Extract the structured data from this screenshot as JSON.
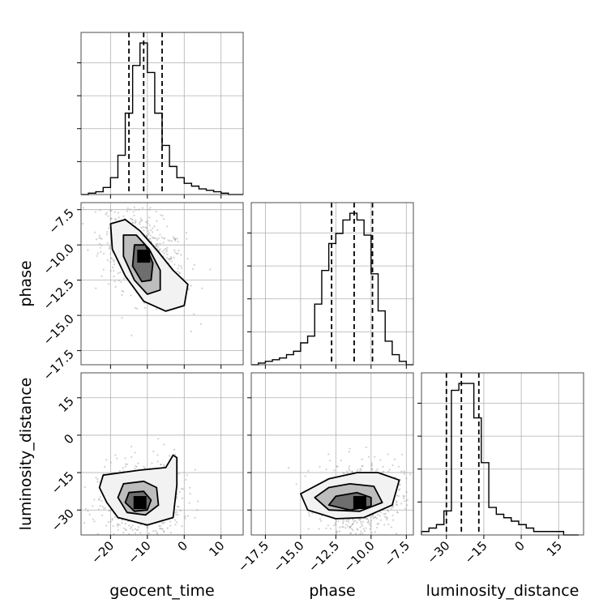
{
  "chart_data": {
    "type": "corner",
    "parameters": [
      "geocent_time",
      "phase",
      "luminosity_distance"
    ],
    "grid": true,
    "colors": {
      "line": "#000000",
      "grid": "#b0b0b0",
      "scatter": "#9a9a9a"
    },
    "ranges": {
      "geocent_time": [
        -28,
        16
      ],
      "phase": [
        -18.5,
        -7
      ],
      "luminosity_distance": [
        -40,
        25
      ]
    },
    "ticks": {
      "geocent_time": {
        "values": [
          -20,
          -10,
          0,
          10
        ],
        "labels": [
          "−20",
          "−10",
          "0",
          "10"
        ]
      },
      "phase": {
        "values": [
          -17.5,
          -15.0,
          -12.5,
          -10.0,
          -7.5
        ],
        "labels": [
          "−17.5",
          "−15.0",
          "−12.5",
          "−10.0",
          "−7.5"
        ]
      },
      "luminosity_distance": {
        "values": [
          -30,
          -15,
          0,
          15
        ],
        "labels": [
          "−30",
          "−15",
          "0",
          "15"
        ]
      }
    },
    "histograms": {
      "geocent_time": {
        "edges": [
          -28,
          -26,
          -24,
          -22,
          -20,
          -18,
          -16,
          -14,
          -12,
          -10,
          -8,
          -6,
          -4,
          -2,
          0,
          2,
          4,
          6,
          8,
          10,
          12,
          14,
          16
        ],
        "counts": [
          0,
          1,
          2,
          5,
          12,
          28,
          58,
          92,
          108,
          87,
          58,
          35,
          20,
          12,
          8,
          6,
          4,
          3,
          2,
          1,
          0,
          0
        ],
        "quantiles": [
          -15,
          -11,
          -6
        ]
      },
      "phase": {
        "edges": [
          -18.5,
          -18,
          -17.5,
          -17,
          -16.5,
          -16,
          -15.5,
          -15,
          -14.5,
          -14,
          -13.5,
          -13,
          -12.5,
          -12,
          -11.5,
          -11,
          -10.5,
          -10,
          -9.5,
          -9,
          -8.5,
          -8,
          -7.5,
          -7
        ],
        "counts": [
          0,
          1,
          2,
          3,
          4,
          6,
          8,
          13,
          17,
          36,
          56,
          72,
          78,
          86,
          90,
          86,
          77,
          54,
          32,
          14,
          6,
          2,
          0
        ],
        "quantiles": [
          -12.8,
          -11.2,
          -9.9
        ]
      },
      "luminosity_distance": {
        "edges": [
          -40,
          -37,
          -34,
          -31,
          -28,
          -25,
          -22,
          -19,
          -16,
          -13,
          -10,
          -7,
          -4,
          -1,
          2,
          5,
          8,
          11,
          14,
          17,
          20,
          23
        ],
        "counts": [
          1,
          2,
          3,
          7,
          42,
          44,
          44,
          34,
          21,
          8,
          6,
          5,
          4,
          3,
          2,
          1,
          1,
          1,
          1,
          0,
          0
        ],
        "quantiles": [
          -30,
          -24,
          -17
        ]
      }
    },
    "pairs": [
      {
        "x": "geocent_time",
        "y": "phase",
        "center": [
          -11,
          -10.8
        ],
        "contours": [
          [
            [
              -20,
              -8.5
            ],
            [
              -16,
              -8.2
            ],
            [
              -12,
              -9
            ],
            [
              -7,
              -10.5
            ],
            [
              -3,
              -11.8
            ],
            [
              1,
              -12.8
            ],
            [
              0,
              -14.3
            ],
            [
              -5,
              -14.7
            ],
            [
              -11,
              -14
            ],
            [
              -16,
              -12.2
            ],
            [
              -19.5,
              -10.3
            ]
          ],
          [
            [
              -16.5,
              -9.3
            ],
            [
              -13,
              -9.3
            ],
            [
              -9.5,
              -10.3
            ],
            [
              -6.5,
              -11.8
            ],
            [
              -6.5,
              -13.2
            ],
            [
              -10,
              -13.5
            ],
            [
              -13.5,
              -12.5
            ],
            [
              -16.5,
              -10.8
            ]
          ],
          [
            [
              -13.5,
              -10
            ],
            [
              -10.5,
              -10
            ],
            [
              -8.5,
              -11.3
            ],
            [
              -9,
              -12.5
            ],
            [
              -11.5,
              -12.6
            ],
            [
              -14,
              -11.5
            ]
          ]
        ]
      },
      {
        "x": "geocent_time",
        "y": "luminosity_distance",
        "center": [
          -12,
          -27
        ],
        "contours": [
          [
            [
              -22,
              -16
            ],
            [
              -12,
              -14
            ],
            [
              -5,
              -13
            ],
            [
              -3,
              -8
            ],
            [
              -2,
              -9
            ],
            [
              -2,
              -20
            ],
            [
              -3,
              -33
            ],
            [
              -10,
              -36
            ],
            [
              -18,
              -33
            ],
            [
              -21,
              -27
            ],
            [
              -23,
              -21
            ]
          ],
          [
            [
              -16.5,
              -19.5
            ],
            [
              -11,
              -18.5
            ],
            [
              -7.5,
              -21
            ],
            [
              -7,
              -28
            ],
            [
              -10.5,
              -32
            ],
            [
              -15.5,
              -31
            ],
            [
              -18,
              -25
            ]
          ],
          [
            [
              -15,
              -23
            ],
            [
              -11,
              -22.5
            ],
            [
              -9,
              -26
            ],
            [
              -10,
              -30
            ],
            [
              -13.5,
              -30.5
            ],
            [
              -16,
              -27
            ]
          ]
        ]
      },
      {
        "x": "phase",
        "y": "luminosity_distance",
        "center": [
          -10.8,
          -27
        ],
        "contours": [
          [
            [
              -13,
              -17.5
            ],
            [
              -11,
              -15
            ],
            [
              -9.5,
              -15
            ],
            [
              -8,
              -18
            ],
            [
              -8.5,
              -28
            ],
            [
              -10.5,
              -33
            ],
            [
              -12.5,
              -33.5
            ],
            [
              -14.5,
              -30
            ],
            [
              -15,
              -23.5
            ]
          ],
          [
            [
              -13,
              -21
            ],
            [
              -11.5,
              -19.5
            ],
            [
              -9.8,
              -20.5
            ],
            [
              -9.2,
              -27
            ],
            [
              -10.8,
              -30.5
            ],
            [
              -13,
              -30
            ],
            [
              -14,
              -25
            ]
          ],
          [
            [
              -12.5,
              -24.5
            ],
            [
              -11,
              -23
            ],
            [
              -10,
              -25
            ],
            [
              -10,
              -28.5
            ],
            [
              -11.5,
              -30
            ],
            [
              -13,
              -28
            ]
          ]
        ]
      }
    ]
  }
}
